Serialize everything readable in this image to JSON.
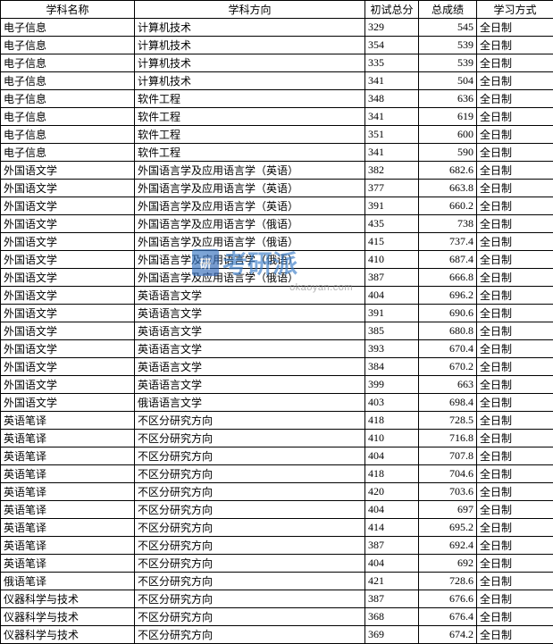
{
  "table": {
    "columns": [
      {
        "key": "subject",
        "label": "学科名称",
        "class": "col-subject"
      },
      {
        "key": "direction",
        "label": "学科方向",
        "class": "col-direction"
      },
      {
        "key": "score1",
        "label": "初试总分",
        "class": "col-score1"
      },
      {
        "key": "score2",
        "label": "总成绩",
        "class": "col-score2"
      },
      {
        "key": "mode",
        "label": "学习方式",
        "class": "col-mode"
      }
    ],
    "rows": [
      [
        "电子信息",
        "计算机技术",
        "329",
        "545",
        "全日制"
      ],
      [
        "电子信息",
        "计算机技术",
        "354",
        "539",
        "全日制"
      ],
      [
        "电子信息",
        "计算机技术",
        "335",
        "539",
        "全日制"
      ],
      [
        "电子信息",
        "计算机技术",
        "341",
        "504",
        "全日制"
      ],
      [
        "电子信息",
        "软件工程",
        "348",
        "636",
        "全日制"
      ],
      [
        "电子信息",
        "软件工程",
        "341",
        "619",
        "全日制"
      ],
      [
        "电子信息",
        "软件工程",
        "351",
        "600",
        "全日制"
      ],
      [
        "电子信息",
        "软件工程",
        "341",
        "590",
        "全日制"
      ],
      [
        "外国语文学",
        "外国语言学及应用语言学（英语）",
        "382",
        "682.6",
        "全日制"
      ],
      [
        "外国语文学",
        "外国语言学及应用语言学（英语）",
        "377",
        "663.8",
        "全日制"
      ],
      [
        "外国语文学",
        "外国语言学及应用语言学（英语）",
        "391",
        "660.2",
        "全日制"
      ],
      [
        "外国语文学",
        "外国语言学及应用语言学（俄语）",
        "435",
        "738",
        "全日制"
      ],
      [
        "外国语文学",
        "外国语言学及应用语言学（俄语）",
        "415",
        "737.4",
        "全日制"
      ],
      [
        "外国语文学",
        "外国语言学及应用语言学（俄语）",
        "410",
        "687.4",
        "全日制"
      ],
      [
        "外国语文学",
        "外国语言学及应用语言学（俄语）",
        "387",
        "666.8",
        "全日制"
      ],
      [
        "外国语文学",
        "英语语言文学",
        "404",
        "696.2",
        "全日制"
      ],
      [
        "外国语文学",
        "英语语言文学",
        "391",
        "690.6",
        "全日制"
      ],
      [
        "外国语文学",
        "英语语言文学",
        "385",
        "680.8",
        "全日制"
      ],
      [
        "外国语文学",
        "英语语言文学",
        "393",
        "670.4",
        "全日制"
      ],
      [
        "外国语文学",
        "英语语言文学",
        "384",
        "670.2",
        "全日制"
      ],
      [
        "外国语文学",
        "英语语言文学",
        "399",
        "663",
        "全日制"
      ],
      [
        "外国语文学",
        "俄语语言文学",
        "403",
        "698.4",
        "全日制"
      ],
      [
        "英语笔译",
        "不区分研究方向",
        "418",
        "728.5",
        "全日制"
      ],
      [
        "英语笔译",
        "不区分研究方向",
        "410",
        "716.8",
        "全日制"
      ],
      [
        "英语笔译",
        "不区分研究方向",
        "404",
        "707.8",
        "全日制"
      ],
      [
        "英语笔译",
        "不区分研究方向",
        "418",
        "704.6",
        "全日制"
      ],
      [
        "英语笔译",
        "不区分研究方向",
        "420",
        "703.6",
        "全日制"
      ],
      [
        "英语笔译",
        "不区分研究方向",
        "404",
        "697",
        "全日制"
      ],
      [
        "英语笔译",
        "不区分研究方向",
        "414",
        "695.2",
        "全日制"
      ],
      [
        "英语笔译",
        "不区分研究方向",
        "387",
        "692.4",
        "全日制"
      ],
      [
        "英语笔译",
        "不区分研究方向",
        "404",
        "692",
        "全日制"
      ],
      [
        "俄语笔译",
        "不区分研究方向",
        "421",
        "728.6",
        "全日制"
      ],
      [
        "仪器科学与技术",
        "不区分研究方向",
        "387",
        "676.6",
        "全日制"
      ],
      [
        "仪器科学与技术",
        "不区分研究方向",
        "368",
        "676.4",
        "全日制"
      ],
      [
        "仪器科学与技术",
        "不区分研究方向",
        "369",
        "674.2",
        "全日制"
      ]
    ],
    "border_color": "#000000",
    "background_color": "#ffffff",
    "text_color": "#000000",
    "font_size": 12
  },
  "watermark": {
    "logo_text": "研",
    "main_text": "考研派",
    "url_text": "okaoyan.com",
    "logo_color": "#3b7ec8",
    "url_color": "#888888"
  }
}
